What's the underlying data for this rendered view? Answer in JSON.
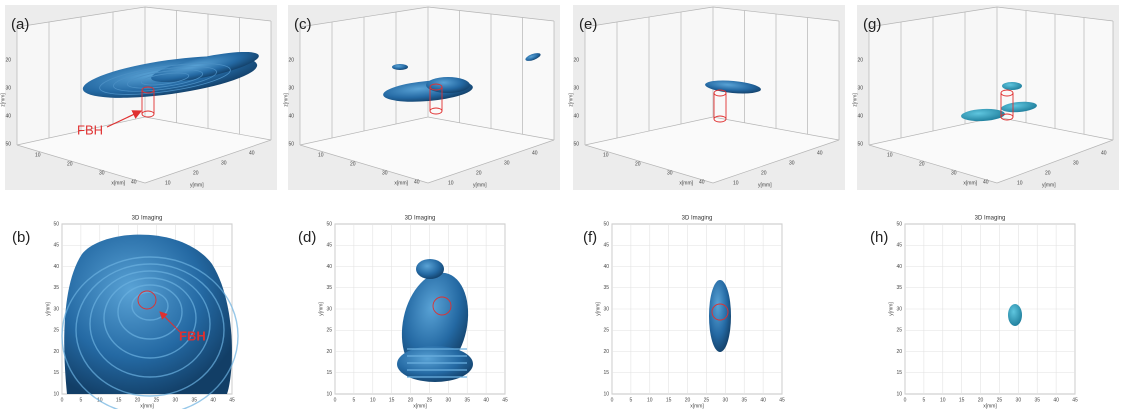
{
  "panels": [
    {
      "label": "(a)"
    },
    {
      "label": "(c)"
    },
    {
      "label": "(e)"
    },
    {
      "label": "(g)"
    },
    {
      "label": "(b)"
    },
    {
      "label": "(d)"
    },
    {
      "label": "(f)"
    },
    {
      "label": "(h)"
    }
  ],
  "annotations": {
    "fbh_top": "FBH",
    "fbh_bottom": "FBH"
  },
  "top_axes": {
    "z_label": "z[mm]",
    "x_label": "x[mm]",
    "y_label": "y[mm]",
    "z_ticks": [
      20,
      30,
      40,
      50
    ],
    "x_ticks": [
      10,
      20,
      30,
      40
    ],
    "y_ticks": [
      10,
      20,
      30,
      40
    ]
  },
  "bottom_axes": {
    "title": "3D Imaging",
    "x_label": "x[mm]",
    "y_label": "y[mm]",
    "x_ticks": [
      0,
      5,
      10,
      15,
      20,
      25,
      30,
      35,
      40,
      45
    ],
    "y_ticks": [
      10,
      15,
      20,
      25,
      30,
      35,
      40,
      45,
      50
    ]
  }
}
